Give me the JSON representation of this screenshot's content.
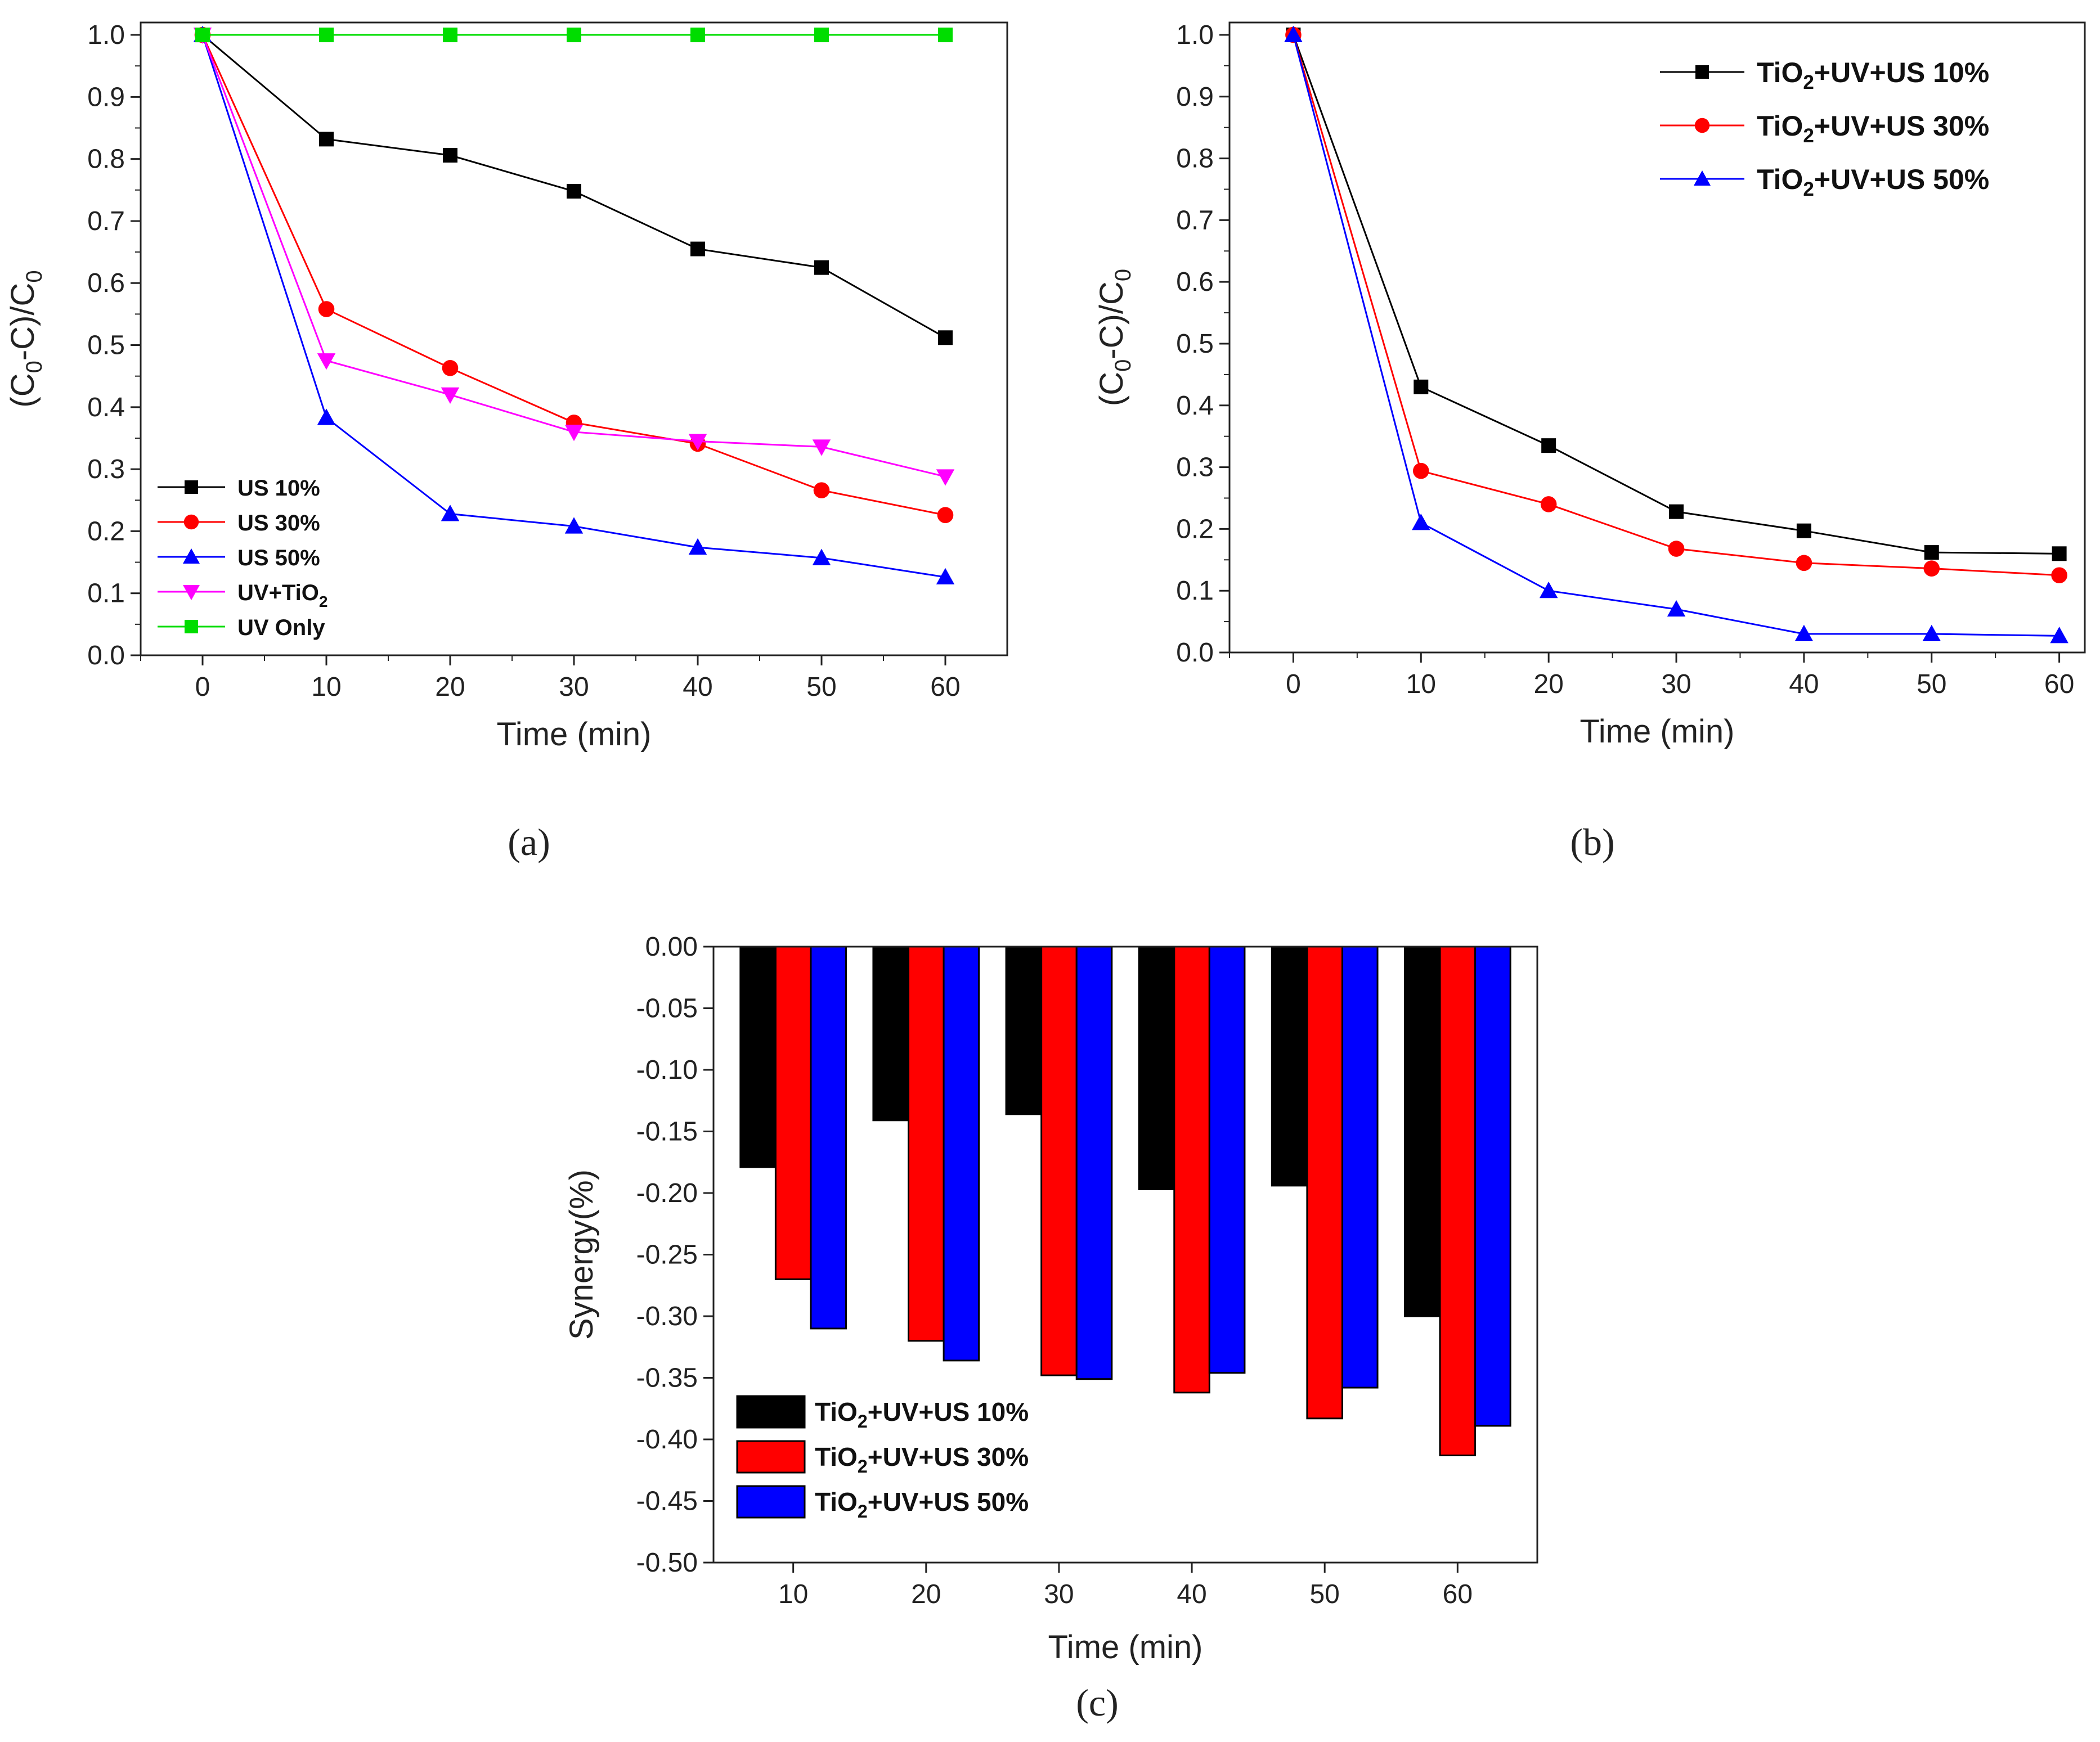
{
  "chart_data": [
    {
      "id": "a",
      "type": "line",
      "panel_label": "(a)",
      "xlabel": "Time (min)",
      "ylabel": {
        "main": "(C",
        "sub1": "0",
        "mid": "-C)/C",
        "sub2": "0"
      },
      "x": [
        0,
        10,
        20,
        30,
        40,
        50,
        60
      ],
      "xticks": [
        "0",
        "10",
        "20",
        "30",
        "40",
        "50",
        "60"
      ],
      "xlim": [
        -5,
        65
      ],
      "ylim": [
        0,
        1.02
      ],
      "yticks": [
        "0.0",
        "0.1",
        "0.2",
        "0.3",
        "0.4",
        "0.5",
        "0.6",
        "0.7",
        "0.8",
        "0.9",
        "1.0"
      ],
      "legend_position": "bottom-left",
      "series": [
        {
          "key": "us10",
          "name": {
            "main": "US 10%"
          },
          "color": "#000000",
          "marker": "square",
          "values": [
            1.0,
            0.832,
            0.806,
            0.748,
            0.655,
            0.625,
            0.512
          ]
        },
        {
          "key": "us30",
          "name": {
            "main": "US 30%"
          },
          "color": "#ff0000",
          "marker": "circle",
          "values": [
            1.0,
            0.558,
            0.463,
            0.375,
            0.341,
            0.266,
            0.226
          ]
        },
        {
          "key": "us50",
          "name": {
            "main": "US 50%"
          },
          "color": "#0000ff",
          "marker": "triangle-up",
          "values": [
            1.0,
            0.383,
            0.228,
            0.208,
            0.174,
            0.157,
            0.126
          ]
        },
        {
          "key": "uvtio2",
          "name": {
            "main": "UV+TiO",
            "sub": "2",
            "tail": ""
          },
          "color": "#ff00ff",
          "marker": "triangle-down",
          "values": [
            1.0,
            0.475,
            0.42,
            0.36,
            0.345,
            0.336,
            0.288
          ]
        },
        {
          "key": "uvonly",
          "name": {
            "main": "UV Only"
          },
          "color": "#00dd00",
          "marker": "square",
          "values": [
            1.0,
            1.0,
            1.0,
            1.0,
            1.0,
            1.0,
            1.0
          ]
        }
      ]
    },
    {
      "id": "b",
      "type": "line",
      "panel_label": "(b)",
      "xlabel": "Time (min)",
      "ylabel": {
        "main": "(C",
        "sub1": "0",
        "mid": "-C)/C",
        "sub2": "0"
      },
      "x": [
        0,
        10,
        20,
        30,
        40,
        50,
        60
      ],
      "xticks": [
        "0",
        "10",
        "20",
        "30",
        "40",
        "50",
        "60"
      ],
      "xlim": [
        -5,
        62
      ],
      "ylim": [
        0,
        1.02
      ],
      "yticks": [
        "0.0",
        "0.1",
        "0.2",
        "0.3",
        "0.4",
        "0.5",
        "0.6",
        "0.7",
        "0.8",
        "0.9",
        "1.0"
      ],
      "legend_position": "top-right",
      "series": [
        {
          "key": "t10",
          "name": {
            "main": "TiO",
            "sub": "2",
            "tail": "+UV+US 10%"
          },
          "color": "#000000",
          "marker": "square",
          "values": [
            1.0,
            0.43,
            0.335,
            0.228,
            0.197,
            0.162,
            0.16
          ]
        },
        {
          "key": "t30",
          "name": {
            "main": "TiO",
            "sub": "2",
            "tail": "+UV+US 30%"
          },
          "color": "#ff0000",
          "marker": "circle",
          "values": [
            1.0,
            0.294,
            0.24,
            0.168,
            0.145,
            0.136,
            0.125
          ]
        },
        {
          "key": "t50",
          "name": {
            "main": "TiO",
            "sub": "2",
            "tail": "+UV+US 50%"
          },
          "color": "#0000ff",
          "marker": "triangle-up",
          "values": [
            1.0,
            0.21,
            0.1,
            0.07,
            0.03,
            0.03,
            0.027
          ]
        }
      ]
    },
    {
      "id": "c",
      "type": "bar",
      "panel_label": "(c)",
      "xlabel": "Time (min)",
      "ylabel": {
        "main": "Synergy(%)"
      },
      "categories": [
        "10",
        "20",
        "30",
        "40",
        "50",
        "60"
      ],
      "ylim": [
        -0.5,
        0.0
      ],
      "yticks": [
        "0.00",
        "-0.05",
        "-0.10",
        "-0.15",
        "-0.20",
        "-0.25",
        "-0.30",
        "-0.35",
        "-0.40",
        "-0.45",
        "-0.50"
      ],
      "legend_position": "bottom-left",
      "series": [
        {
          "key": "s10",
          "name": {
            "main": "TiO",
            "sub": "2",
            "tail": "+UV+US 10%"
          },
          "color": "#000000",
          "values": [
            -0.179,
            -0.141,
            -0.136,
            -0.197,
            -0.194,
            -0.3
          ]
        },
        {
          "key": "s30",
          "name": {
            "main": "TiO",
            "sub": "2",
            "tail": "+UV+US 30%"
          },
          "color": "#ff0000",
          "values": [
            -0.27,
            -0.32,
            -0.348,
            -0.362,
            -0.383,
            -0.413
          ]
        },
        {
          "key": "s50",
          "name": {
            "main": "TiO",
            "sub": "2",
            "tail": "+UV+US 50%"
          },
          "color": "#0000ff",
          "values": [
            -0.31,
            -0.336,
            -0.351,
            -0.346,
            -0.358,
            -0.389
          ]
        }
      ]
    }
  ]
}
